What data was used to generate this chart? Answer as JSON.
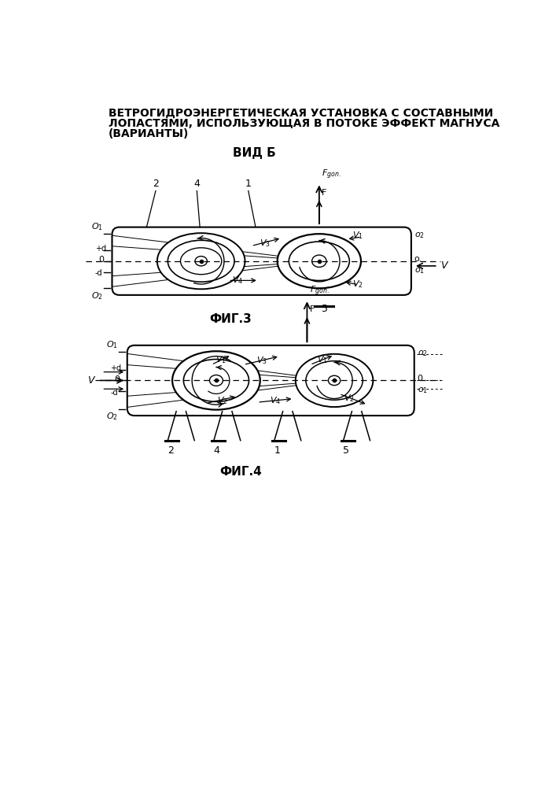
{
  "title_line1": "ВЕТРОГИДРОЭНЕРГЕТИЧЕСКАЯ УСТАНОВКА С СОСТАВНЫМИ",
  "title_line2": "ЛОПАСТЯМИ, ИСПОЛЬЗУЮЩАЯ В ПОТОКЕ ЭФФЕКТ МАГНУСА",
  "title_line3": "(ВАРИАНТЫ)",
  "fig3_label": "ФИГ.3",
  "fig4_label": "ФИГ.4",
  "vid_b_label": "ВИД Б",
  "bg_color": "#ffffff",
  "line_color": "#000000"
}
